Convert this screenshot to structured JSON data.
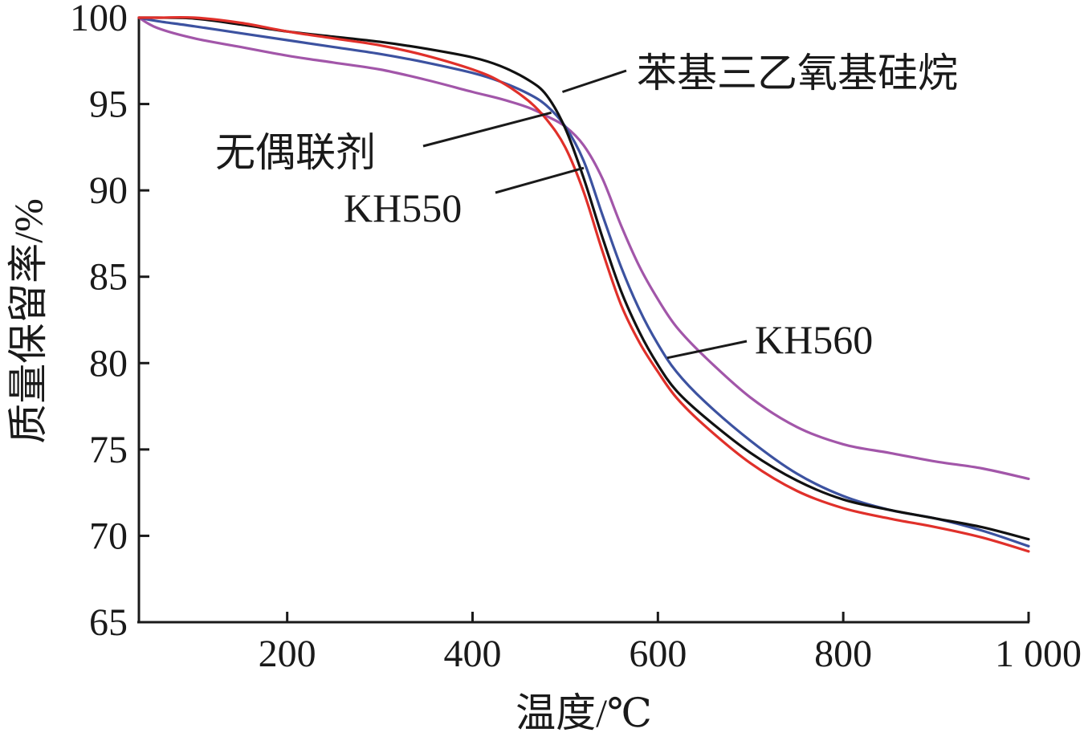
{
  "chart_data": {
    "type": "line",
    "xlabel": "温度/℃",
    "ylabel": "质量保留率/%",
    "xlim": [
      40,
      1000
    ],
    "ylim": [
      65,
      100
    ],
    "x_ticks": [
      200,
      400,
      600,
      800,
      1000
    ],
    "x_tick_labels": [
      "200",
      "400",
      "600",
      "800",
      "1 000"
    ],
    "y_ticks": [
      65,
      70,
      75,
      80,
      85,
      90,
      95,
      100
    ],
    "y_tick_labels": [
      "65",
      "70",
      "75",
      "80",
      "85",
      "90",
      "95",
      "100"
    ],
    "grid": false,
    "legend": "none (direct labels)",
    "series": [
      {
        "name": "苯基三乙氧基硅烷",
        "color": "#111111",
        "x": [
          40,
          60,
          100,
          150,
          200,
          250,
          300,
          350,
          400,
          430,
          460,
          480,
          500,
          520,
          540,
          560,
          580,
          600,
          620,
          650,
          700,
          750,
          800,
          850,
          900,
          950,
          1000
        ],
        "y": [
          100.0,
          100.0,
          99.95,
          99.6,
          99.2,
          98.9,
          98.6,
          98.2,
          97.7,
          97.2,
          96.4,
          95.5,
          93.6,
          90.7,
          87.3,
          84.2,
          81.8,
          79.9,
          78.4,
          76.9,
          74.8,
          73.2,
          72.1,
          71.5,
          71.0,
          70.5,
          69.8
        ]
      },
      {
        "name": "无偶联剂",
        "color": "#3c52a0",
        "x": [
          40,
          60,
          100,
          150,
          200,
          250,
          300,
          350,
          400,
          430,
          460,
          480,
          500,
          520,
          540,
          560,
          580,
          600,
          620,
          650,
          700,
          750,
          800,
          850,
          900,
          950,
          1000
        ],
        "y": [
          100.0,
          99.8,
          99.5,
          99.1,
          98.7,
          98.3,
          97.9,
          97.4,
          96.8,
          96.3,
          95.6,
          94.9,
          93.7,
          91.7,
          88.6,
          85.6,
          83.1,
          81.1,
          79.5,
          77.8,
          75.5,
          73.6,
          72.3,
          71.5,
          71.0,
          70.3,
          69.4
        ]
      },
      {
        "name": "KH550",
        "color": "#e0302a",
        "x": [
          40,
          60,
          100,
          150,
          200,
          250,
          300,
          350,
          400,
          430,
          460,
          480,
          500,
          520,
          540,
          560,
          580,
          600,
          620,
          650,
          700,
          750,
          800,
          850,
          900,
          950,
          1000
        ],
        "y": [
          100.0,
          100.0,
          100.0,
          99.7,
          99.2,
          98.8,
          98.4,
          97.8,
          97.0,
          96.3,
          95.2,
          94.1,
          92.5,
          89.9,
          86.5,
          83.4,
          81.2,
          79.5,
          78.0,
          76.4,
          74.2,
          72.6,
          71.6,
          71.0,
          70.5,
          69.9,
          69.1
        ]
      },
      {
        "name": "KH560",
        "color": "#a256a9",
        "x": [
          40,
          60,
          100,
          150,
          200,
          250,
          300,
          350,
          400,
          430,
          460,
          480,
          500,
          520,
          540,
          560,
          580,
          600,
          620,
          650,
          700,
          750,
          800,
          850,
          900,
          950,
          1000
        ],
        "y": [
          100.0,
          99.4,
          98.8,
          98.3,
          97.8,
          97.4,
          97.0,
          96.4,
          95.7,
          95.3,
          94.8,
          94.3,
          93.7,
          92.6,
          90.7,
          88.0,
          85.6,
          83.7,
          82.1,
          80.4,
          78.0,
          76.3,
          75.3,
          74.8,
          74.3,
          73.9,
          73.3
        ]
      }
    ],
    "annotations": [
      {
        "text": "苯基三乙氧基硅烷",
        "series": "苯基三乙氧基硅烷"
      },
      {
        "text": "无偶联剂",
        "series": "无偶联剂"
      },
      {
        "text": "KH550",
        "series": "KH550"
      },
      {
        "text": "KH560",
        "series": "KH560"
      }
    ]
  }
}
